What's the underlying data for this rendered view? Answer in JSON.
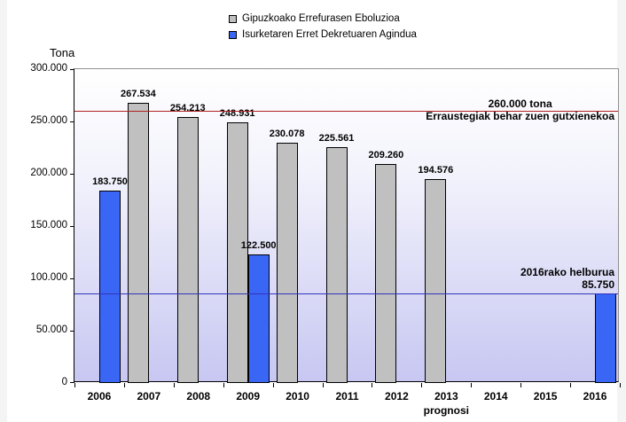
{
  "page": {
    "background": "#f4f4f4",
    "canvas_background": "#ffffff"
  },
  "chart_data": {
    "type": "bar",
    "unit_label": "Tona",
    "categories": [
      "2006",
      "2007",
      "2008",
      "2009",
      "2010",
      "2011",
      "2012",
      "2013",
      "2014",
      "2015",
      "2016"
    ],
    "x_sub_label": {
      "text": "prognosi",
      "category": "2013"
    },
    "ylim": [
      0,
      300000
    ],
    "y_ticks": [
      "300.000",
      "250.000",
      "200.000",
      "150.000",
      "100.000",
      "50.000",
      "0"
    ],
    "grid": false,
    "legend_position": "top-center",
    "series": [
      {
        "name": "Gipuzkoako Errefurasen Eboluzioa",
        "color": "#c0c0c0",
        "points": [
          {
            "category": "2007",
            "value": 267534,
            "label": "267.534"
          },
          {
            "category": "2008",
            "value": 254213,
            "label": "254.213"
          },
          {
            "category": "2009",
            "value": 248931,
            "label": "248.931"
          },
          {
            "category": "2010",
            "value": 230078,
            "label": "230.078"
          },
          {
            "category": "2011",
            "value": 225561,
            "label": "225.561"
          },
          {
            "category": "2012",
            "value": 209260,
            "label": "209.260"
          },
          {
            "category": "2013",
            "value": 194576,
            "label": "194.576"
          }
        ]
      },
      {
        "name": "Isurketaren Erret Dekretuaren Agindua",
        "color": "#3966f4",
        "points": [
          {
            "category": "2006",
            "value": 183750,
            "label": "183.750"
          },
          {
            "category": "2009",
            "value": 122500,
            "label": "122.500"
          },
          {
            "category": "2016",
            "value": 85750,
            "label": null
          }
        ]
      }
    ],
    "reference_lines": [
      {
        "value": 260000,
        "color": "#b22222",
        "labels": [
          "260.000 tona",
          "Erraustegiak behar zuen gutxienekoa"
        ],
        "label_align": "center"
      },
      {
        "value": 85750,
        "color": "#3333bb",
        "labels": [
          "2016rako helburua",
          "85.750"
        ],
        "label_align": "right"
      }
    ]
  }
}
